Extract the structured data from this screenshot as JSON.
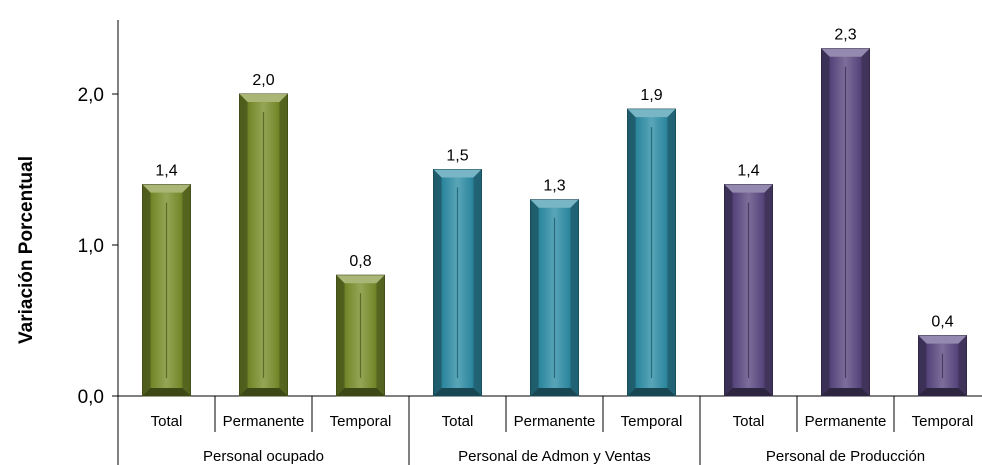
{
  "chart_data": {
    "type": "bar",
    "ylabel": "Variación Porcentual",
    "ylim": [
      0,
      2.4
    ],
    "yticks": [
      "0,0",
      "1,0",
      "2,0"
    ],
    "grid": false,
    "groups": [
      {
        "name": "Personal ocupado",
        "color": "#7a8f2c",
        "bars": [
          {
            "category": "Total",
            "value": 1.4,
            "label": "1,4"
          },
          {
            "category": "Permanente",
            "value": 2.0,
            "label": "2,0"
          },
          {
            "category": "Temporal",
            "value": 0.8,
            "label": "0,8"
          }
        ]
      },
      {
        "name": "Personal de Admon y Ventas",
        "color": "#2f8ea6",
        "bars": [
          {
            "category": "Total",
            "value": 1.5,
            "label": "1,5"
          },
          {
            "category": "Permanente",
            "value": 1.3,
            "label": "1,3"
          },
          {
            "category": "Temporal",
            "value": 1.9,
            "label": "1,9"
          }
        ]
      },
      {
        "name": "Personal de Producción",
        "color": "#5b4a82",
        "bars": [
          {
            "category": "Total",
            "value": 1.4,
            "label": "1,4"
          },
          {
            "category": "Permanente",
            "value": 2.3,
            "label": "2,3"
          },
          {
            "category": "Temporal",
            "value": 0.4,
            "label": "0,4"
          }
        ]
      }
    ]
  }
}
